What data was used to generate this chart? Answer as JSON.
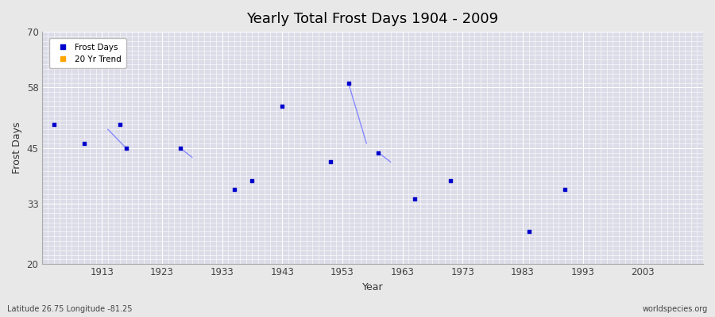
{
  "title": "Yearly Total Frost Days 1904 - 2009",
  "xlabel": "Year",
  "ylabel": "Frost Days",
  "xlim": [
    1903,
    2013
  ],
  "ylim": [
    20,
    70
  ],
  "yticks": [
    20,
    33,
    45,
    58,
    70
  ],
  "xticks": [
    1913,
    1923,
    1933,
    1943,
    1953,
    1963,
    1973,
    1983,
    1993,
    2003
  ],
  "fig_bg_color": "#e8e8e8",
  "plot_bg_color": "#dcdce8",
  "grid_color": "#ffffff",
  "dot_color": "#0000cc",
  "line_color": "#8888ff",
  "legend_frost_color": "#0000cc",
  "legend_trend_color": "#ffa500",
  "watermark_left": "Latitude 26.75 Longitude -81.25",
  "watermark_right": "worldspecies.org",
  "scatter_years": [
    1905,
    1910,
    1916,
    1917,
    1926,
    1935,
    1938,
    1943,
    1951,
    1954,
    1959,
    1965,
    1971,
    1984,
    1990
  ],
  "scatter_values": [
    50,
    46,
    50,
    45,
    45,
    36,
    38,
    54,
    42,
    59,
    44,
    34,
    38,
    27,
    36
  ],
  "line_segments": [
    {
      "x": [
        1914,
        1917
      ],
      "y": [
        49,
        45
      ]
    },
    {
      "x": [
        1926,
        1928
      ],
      "y": [
        45,
        43
      ]
    },
    {
      "x": [
        1954,
        1957
      ],
      "y": [
        59,
        46
      ]
    },
    {
      "x": [
        1959,
        1961
      ],
      "y": [
        44,
        42
      ]
    }
  ]
}
